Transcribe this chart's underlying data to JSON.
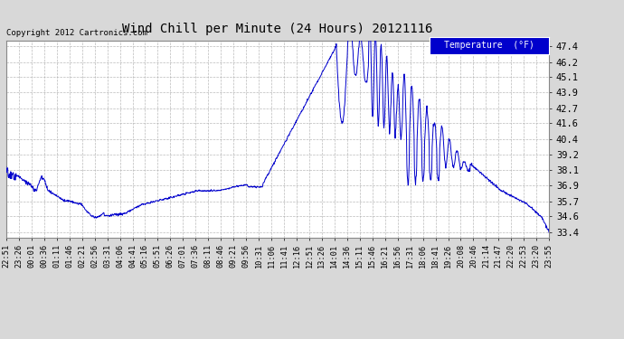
{
  "title": "Wind Chill per Minute (24 Hours) 20121116",
  "copyright_text": "Copyright 2012 Cartronics.com",
  "legend_label": "Temperature  (°F)",
  "line_color": "#0000CC",
  "background_color": "#D8D8D8",
  "plot_background": "#FFFFFF",
  "grid_color": "#AAAAAA",
  "ylim": [
    33.0,
    47.8
  ],
  "yticks": [
    33.4,
    34.6,
    35.7,
    36.9,
    38.1,
    39.2,
    40.4,
    41.6,
    42.7,
    43.9,
    45.1,
    46.2,
    47.4
  ],
  "xtick_labels": [
    "22:51",
    "23:26",
    "00:01",
    "00:36",
    "01:11",
    "01:46",
    "02:21",
    "02:56",
    "03:31",
    "04:06",
    "04:41",
    "05:16",
    "05:51",
    "06:26",
    "07:01",
    "07:36",
    "08:11",
    "08:46",
    "09:21",
    "09:56",
    "10:31",
    "11:06",
    "11:41",
    "12:16",
    "12:51",
    "13:26",
    "14:01",
    "14:36",
    "15:11",
    "15:46",
    "16:21",
    "16:56",
    "17:31",
    "18:06",
    "18:41",
    "19:26",
    "20:08",
    "20:46",
    "21:14",
    "21:47",
    "22:20",
    "22:53",
    "23:20",
    "23:55"
  ]
}
